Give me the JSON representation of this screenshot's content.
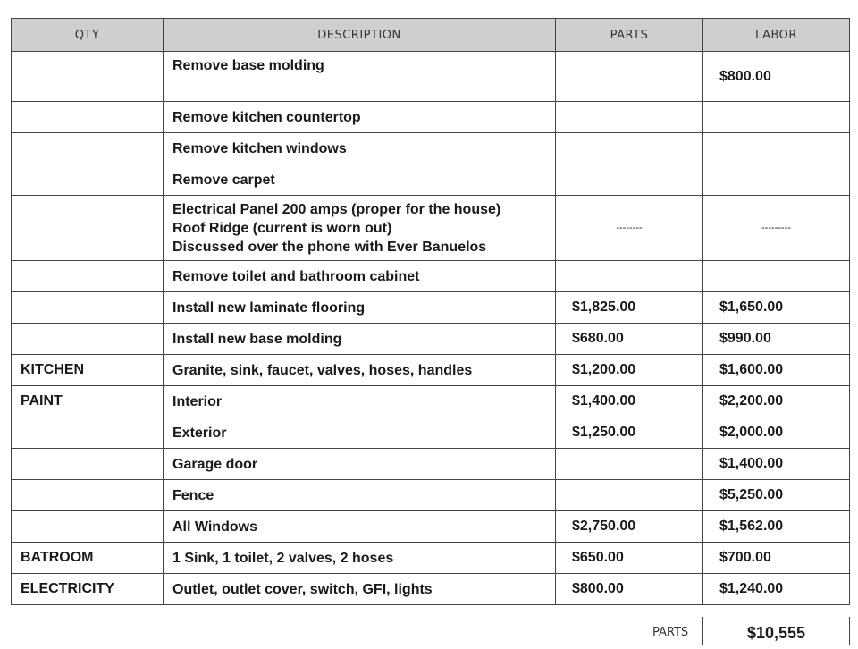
{
  "headers": {
    "qty": "QTY",
    "description": "DESCRIPTION",
    "parts": "PARTS",
    "labor": "LABOR"
  },
  "rows": [
    {
      "qty": "",
      "description": "Remove base molding",
      "parts": "",
      "labor": "$800.00"
    },
    {
      "qty": "",
      "description": "Remove kitchen countertop",
      "parts": "",
      "labor": ""
    },
    {
      "qty": "",
      "description": "Remove kitchen windows",
      "parts": "",
      "labor": ""
    },
    {
      "qty": "",
      "description": "Remove carpet",
      "parts": "",
      "labor": ""
    },
    {
      "qty": "",
      "description_lines": [
        "Electrical Panel 200 amps (proper for the house)",
        "Roof Ridge (current is worn out)",
        "Discussed over the phone with Ever Banuelos"
      ],
      "parts": "--------",
      "labor": "---------"
    },
    {
      "qty": "",
      "description": "Remove toilet and bathroom cabinet",
      "parts": "",
      "labor": ""
    },
    {
      "qty": "",
      "description": "Install new laminate flooring",
      "parts": "$1,825.00",
      "labor": "$1,650.00"
    },
    {
      "qty": "",
      "description": "Install new base molding",
      "parts": "$680.00",
      "labor": "$990.00"
    },
    {
      "qty": "KITCHEN",
      "description": "Granite, sink, faucet, valves, hoses, handles",
      "parts": "$1,200.00",
      "labor": "$1,600.00"
    },
    {
      "qty": "PAINT",
      "description": "Interior",
      "parts": "$1,400.00",
      "labor": "$2,200.00"
    },
    {
      "qty": "",
      "description": "Exterior",
      "parts": "$1,250.00",
      "labor": "$2,000.00"
    },
    {
      "qty": "",
      "description": "Garage door",
      "parts": "",
      "labor": "$1,400.00"
    },
    {
      "qty": "",
      "description": "Fence",
      "parts": "",
      "labor": "$5,250.00"
    },
    {
      "qty": "",
      "description": "All Windows",
      "parts": "$2,750.00",
      "labor": "$1,562.00"
    },
    {
      "qty": "BATROOM",
      "description": "1 Sink, 1 toilet, 2 valves, 2 hoses",
      "parts": "$650.00",
      "labor": "$700.00"
    },
    {
      "qty": "ELECTRICITY",
      "description": "Outlet, outlet cover, switch, GFI, lights",
      "parts": "$800.00",
      "labor": "$1,240.00"
    }
  ],
  "totals": {
    "label": "PARTS",
    "value": "$10,555"
  }
}
